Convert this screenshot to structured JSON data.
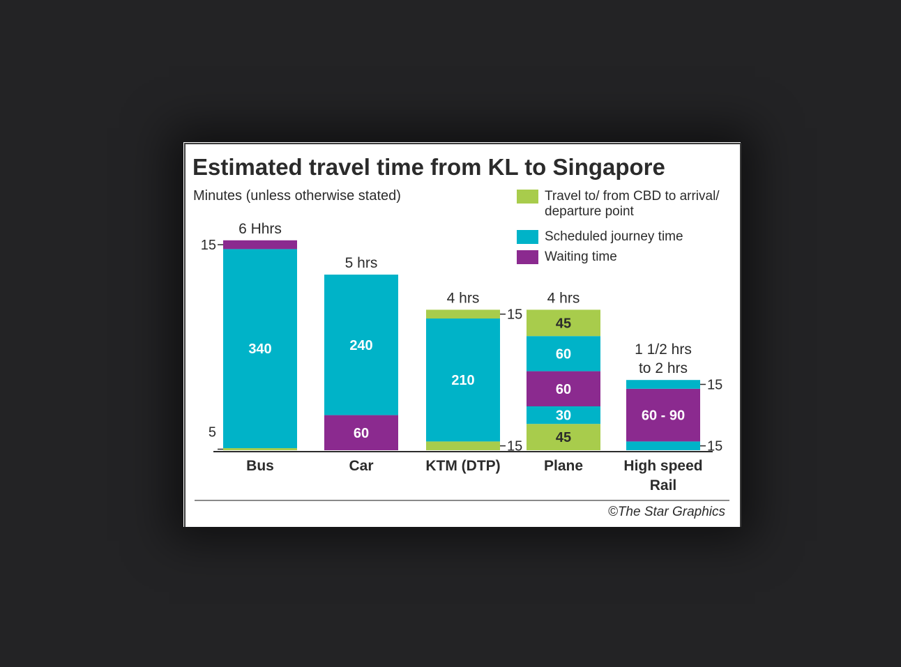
{
  "colors": {
    "travel": "#a8cc4c",
    "scheduled": "#00b3c8",
    "waiting": "#8b2a8f",
    "text": "#2b2b2b",
    "background": "#232325",
    "card": "#ffffff"
  },
  "chart_data": {
    "type": "bar",
    "stacked": true,
    "title": "Estimated travel time from KL to Singapore",
    "subtitle": "Minutes (unless otherwise stated)",
    "legend": [
      {
        "key": "travel",
        "lines": [
          "Travel to/ from CBD to arrival/",
          "departure point"
        ]
      },
      {
        "key": "scheduled",
        "lines": [
          "Scheduled journey time"
        ]
      },
      {
        "key": "waiting",
        "lines": [
          "Waiting time"
        ]
      }
    ],
    "legend_position": "top-right",
    "categories": [
      {
        "label_lines": [
          "Bus"
        ],
        "total_lines": [
          "6 Hhrs"
        ],
        "segments": [
          {
            "key": "travel",
            "value": 5,
            "label": "",
            "side_label": "5"
          },
          {
            "key": "scheduled",
            "value": 340,
            "label": "340",
            "side_label": ""
          },
          {
            "key": "waiting",
            "value": 15,
            "label": "",
            "side_label": "15"
          }
        ]
      },
      {
        "label_lines": [
          "Car"
        ],
        "total_lines": [
          "5 hrs"
        ],
        "segments": [
          {
            "key": "waiting",
            "value": 60,
            "label": "60",
            "side_label": ""
          },
          {
            "key": "scheduled",
            "value": 240,
            "label": "240",
            "side_label": ""
          }
        ]
      },
      {
        "label_lines": [
          "KTM (DTP)"
        ],
        "total_lines": [
          "4 hrs"
        ],
        "segments": [
          {
            "key": "travel",
            "value": 15,
            "label": "",
            "side_label": "15"
          },
          {
            "key": "scheduled",
            "value": 210,
            "label": "210",
            "side_label": ""
          },
          {
            "key": "travel",
            "value": 15,
            "label": "",
            "side_label": "15"
          }
        ]
      },
      {
        "label_lines": [
          "Plane"
        ],
        "total_lines": [
          "4 hrs"
        ],
        "segments": [
          {
            "key": "travel",
            "value": 45,
            "label": "45",
            "side_label": ""
          },
          {
            "key": "scheduled",
            "value": 30,
            "label": "30",
            "side_label": ""
          },
          {
            "key": "waiting",
            "value": 60,
            "label": "60",
            "side_label": ""
          },
          {
            "key": "scheduled",
            "value": 60,
            "label": "60",
            "side_label": ""
          },
          {
            "key": "travel",
            "value": 45,
            "label": "45",
            "side_label": ""
          }
        ]
      },
      {
        "label_lines": [
          "High speed",
          "Rail"
        ],
        "total_lines": [
          "1 1/2 hrs",
          "to 2 hrs"
        ],
        "segments": [
          {
            "key": "scheduled",
            "value": 15,
            "label": "",
            "side_label": "15"
          },
          {
            "key": "waiting",
            "value": 90,
            "label": "60 - 90",
            "side_label": ""
          },
          {
            "key": "scheduled",
            "value": 15,
            "label": "",
            "side_label": "15"
          }
        ]
      }
    ],
    "y_unit": "minutes",
    "ylim": [
      0,
      360
    ],
    "grid": false
  },
  "credit": "©The Star Graphics"
}
